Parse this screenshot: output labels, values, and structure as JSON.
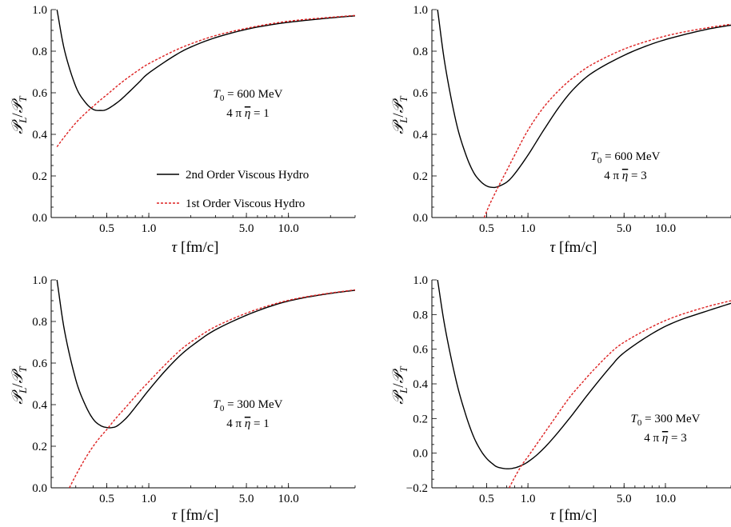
{
  "chart_data": [
    {
      "type": "line",
      "xlabel": "τ [fm/c]",
      "ylabel": "𝒫L/𝒫T",
      "x_scale": "log",
      "xlim": [
        0.2,
        30
      ],
      "ylim": [
        0,
        1
      ],
      "x_ticks": [
        "0.5",
        "1.0",
        "5.0",
        "10.0"
      ],
      "y_ticks": [
        "0.0",
        "0.2",
        "0.4",
        "0.6",
        "0.8",
        "1.0"
      ],
      "annotation": [
        "T0 = 600 MeV",
        "4 π η = 1"
      ],
      "legend": {
        "position": "center-right",
        "entries": [
          "2nd Order Viscous Hydro",
          "1st Order Viscous Hydro"
        ]
      },
      "series": [
        {
          "name": "2nd Order Viscous Hydro",
          "color": "#000000",
          "dash": "solid",
          "x": [
            0.22,
            0.25,
            0.3,
            0.35,
            0.4,
            0.45,
            0.5,
            0.6,
            0.7,
            0.85,
            1.0,
            1.5,
            2.0,
            3.0,
            5.0,
            8.0,
            12.0,
            20.0,
            30.0
          ],
          "y": [
            1.0,
            0.8,
            0.63,
            0.555,
            0.52,
            0.515,
            0.52,
            0.555,
            0.595,
            0.65,
            0.695,
            0.775,
            0.82,
            0.865,
            0.905,
            0.93,
            0.945,
            0.96,
            0.97
          ]
        },
        {
          "name": "1st Order Viscous Hydro",
          "color": "#dd2222",
          "dash": "dashed",
          "x": [
            0.22,
            0.25,
            0.3,
            0.35,
            0.4,
            0.45,
            0.5,
            0.6,
            0.7,
            0.85,
            1.0,
            1.5,
            2.0,
            3.0,
            5.0,
            8.0,
            12.0,
            20.0,
            30.0
          ],
          "y": [
            0.34,
            0.39,
            0.455,
            0.5,
            0.535,
            0.565,
            0.59,
            0.635,
            0.67,
            0.71,
            0.74,
            0.8,
            0.835,
            0.875,
            0.91,
            0.935,
            0.95,
            0.963,
            0.972
          ]
        }
      ]
    },
    {
      "type": "line",
      "xlabel": "τ [fm/c]",
      "ylabel": "𝒫L/𝒫T",
      "x_scale": "log",
      "xlim": [
        0.2,
        30
      ],
      "ylim": [
        0,
        1
      ],
      "x_ticks": [
        "0.5",
        "1.0",
        "5.0",
        "10.0"
      ],
      "y_ticks": [
        "0.0",
        "0.2",
        "0.4",
        "0.6",
        "0.8",
        "1.0"
      ],
      "annotation": [
        "T0 = 600 MeV",
        "4 π η = 3"
      ],
      "series": [
        {
          "name": "2nd Order Viscous Hydro",
          "color": "#000000",
          "dash": "solid",
          "x": [
            0.22,
            0.25,
            0.3,
            0.35,
            0.4,
            0.45,
            0.5,
            0.55,
            0.6,
            0.7,
            0.8,
            1.0,
            1.3,
            1.7,
            2.2,
            3.0,
            5.0,
            8.0,
            12.0,
            20.0,
            30.0
          ],
          "y": [
            1.0,
            0.73,
            0.46,
            0.31,
            0.22,
            0.175,
            0.152,
            0.145,
            0.148,
            0.17,
            0.21,
            0.3,
            0.42,
            0.535,
            0.625,
            0.7,
            0.78,
            0.835,
            0.87,
            0.905,
            0.925
          ]
        },
        {
          "name": "1st Order Viscous Hydro",
          "color": "#dd2222",
          "dash": "dashed",
          "x": [
            0.48,
            0.52,
            0.56,
            0.6,
            0.65,
            0.7,
            0.8,
            1.0,
            1.3,
            1.7,
            2.2,
            3.0,
            5.0,
            8.0,
            12.0,
            20.0,
            30.0
          ],
          "y": [
            0.0,
            0.055,
            0.1,
            0.14,
            0.185,
            0.225,
            0.3,
            0.42,
            0.53,
            0.615,
            0.68,
            0.74,
            0.81,
            0.855,
            0.885,
            0.912,
            0.93
          ]
        }
      ]
    },
    {
      "type": "line",
      "xlabel": "τ [fm/c]",
      "ylabel": "𝒫L/𝒫T",
      "x_scale": "log",
      "xlim": [
        0.2,
        30
      ],
      "ylim": [
        0,
        1
      ],
      "x_ticks": [
        "0.5",
        "1.0",
        "5.0",
        "10.0"
      ],
      "y_ticks": [
        "0.0",
        "0.2",
        "0.4",
        "0.6",
        "0.8",
        "1.0"
      ],
      "annotation": [
        "T0 = 300 MeV",
        "4 π η = 1"
      ],
      "series": [
        {
          "name": "2nd Order Viscous Hydro",
          "color": "#000000",
          "dash": "solid",
          "x": [
            0.22,
            0.25,
            0.3,
            0.35,
            0.4,
            0.45,
            0.5,
            0.55,
            0.6,
            0.7,
            0.85,
            1.0,
            1.3,
            1.7,
            2.2,
            3.0,
            5.0,
            8.0,
            12.0,
            20.0,
            30.0
          ],
          "y": [
            1.0,
            0.75,
            0.52,
            0.4,
            0.33,
            0.3,
            0.29,
            0.29,
            0.3,
            0.34,
            0.41,
            0.47,
            0.56,
            0.64,
            0.7,
            0.76,
            0.83,
            0.88,
            0.91,
            0.935,
            0.95
          ]
        },
        {
          "name": "1st Order Viscous Hydro",
          "color": "#dd2222",
          "dash": "dashed",
          "x": [
            0.27,
            0.3,
            0.35,
            0.4,
            0.45,
            0.5,
            0.55,
            0.6,
            0.7,
            0.85,
            1.0,
            1.3,
            1.7,
            2.2,
            3.0,
            5.0,
            8.0,
            12.0,
            20.0,
            30.0
          ],
          "y": [
            0.0,
            0.06,
            0.14,
            0.2,
            0.245,
            0.28,
            0.315,
            0.345,
            0.395,
            0.46,
            0.51,
            0.59,
            0.665,
            0.72,
            0.775,
            0.84,
            0.885,
            0.913,
            0.937,
            0.952
          ]
        }
      ]
    },
    {
      "type": "line",
      "xlabel": "τ [fm/c]",
      "ylabel": "𝒫L/𝒫T",
      "x_scale": "log",
      "xlim": [
        0.2,
        30
      ],
      "ylim": [
        -0.2,
        1
      ],
      "x_ticks": [
        "0.5",
        "1.0",
        "5.0",
        "10.0"
      ],
      "y_ticks": [
        "-0.2",
        "0.0",
        "0.2",
        "0.4",
        "0.6",
        "0.8",
        "1.0"
      ],
      "annotation": [
        "T0 = 300 MeV",
        "4 π η = 3"
      ],
      "series": [
        {
          "name": "2nd Order Viscous Hydro",
          "color": "#000000",
          "dash": "solid",
          "x": [
            0.22,
            0.25,
            0.3,
            0.35,
            0.4,
            0.45,
            0.5,
            0.55,
            0.6,
            0.7,
            0.8,
            0.9,
            1.0,
            1.2,
            1.5,
            2.0,
            2.5,
            3.0,
            4.0,
            5.0,
            8.0,
            12.0,
            20.0,
            30.0
          ],
          "y": [
            1.0,
            0.72,
            0.42,
            0.23,
            0.1,
            0.02,
            -0.03,
            -0.06,
            -0.08,
            -0.09,
            -0.085,
            -0.07,
            -0.05,
            0.0,
            0.08,
            0.2,
            0.3,
            0.38,
            0.5,
            0.58,
            0.69,
            0.76,
            0.82,
            0.865
          ]
        },
        {
          "name": "1st Order Viscous Hydro",
          "color": "#dd2222",
          "dash": "dashed",
          "x": [
            0.73,
            0.8,
            0.9,
            1.0,
            1.2,
            1.5,
            2.0,
            2.5,
            3.0,
            4.0,
            5.0,
            8.0,
            12.0,
            20.0,
            30.0
          ],
          "y": [
            -0.2,
            -0.14,
            -0.07,
            -0.02,
            0.07,
            0.18,
            0.32,
            0.41,
            0.48,
            0.58,
            0.64,
            0.73,
            0.79,
            0.845,
            0.88
          ]
        }
      ]
    }
  ]
}
